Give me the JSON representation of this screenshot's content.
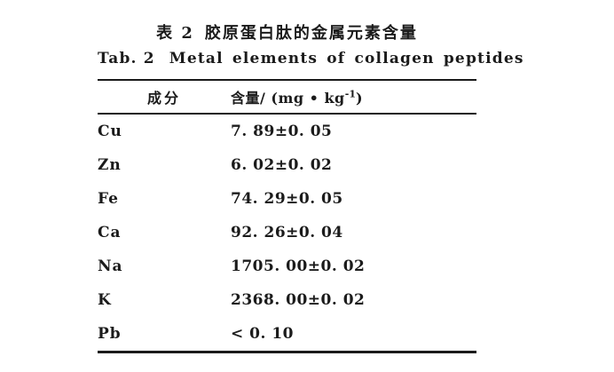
{
  "page": {
    "background": "#ffffff",
    "text_color": "#1b1b1b",
    "rule_color": "#1a1a1a"
  },
  "title": {
    "cn_label": "表 2",
    "cn_text": "胶原蛋白肽的金属元素含量",
    "en_label": "Tab. 2",
    "en_text": "Metal elements of collagen peptides"
  },
  "table": {
    "columns": {
      "component": "成分",
      "content_pre": "含量/ (mg • kg",
      "content_sup": "-1",
      "content_post": ")"
    },
    "rows": [
      {
        "element": "Cu",
        "value": "7. 89±0. 05"
      },
      {
        "element": "Zn",
        "value": "6. 02±0. 02"
      },
      {
        "element": "Fe",
        "value": "74. 29±0. 05"
      },
      {
        "element": "Ca",
        "value": "92. 26±0. 04"
      },
      {
        "element": "Na",
        "value": "1705. 00±0. 02"
      },
      {
        "element": "K",
        "value": "2368. 00±0. 02"
      },
      {
        "element": "Pb",
        "value": "< 0. 10"
      }
    ]
  }
}
